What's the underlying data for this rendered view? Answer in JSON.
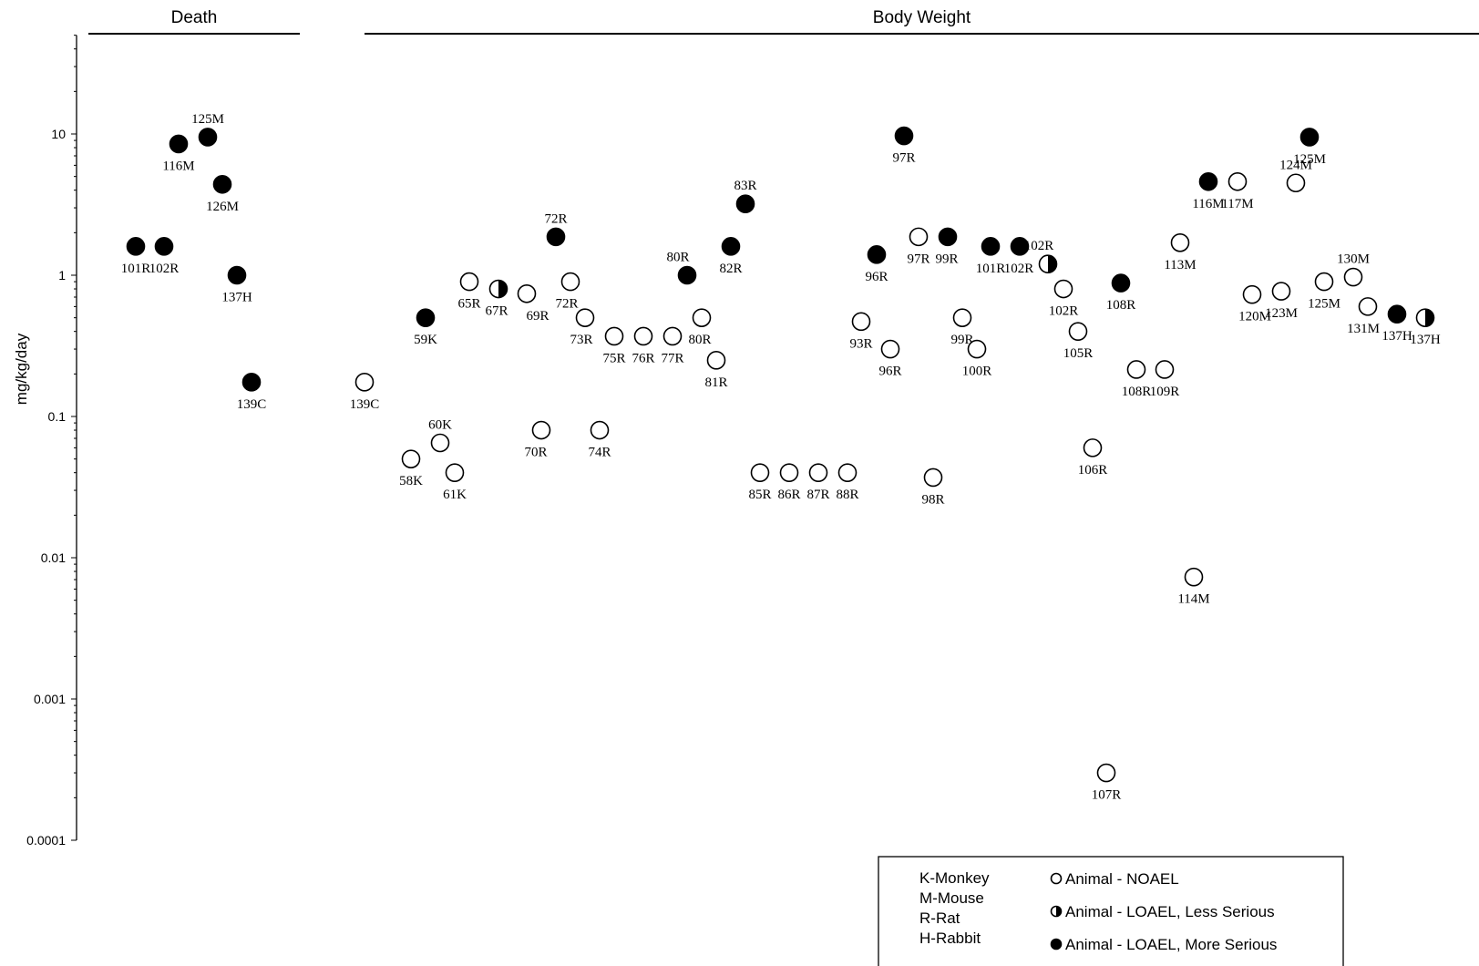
{
  "chart_data": {
    "type": "scatter",
    "ylabel": "mg/kg/day",
    "yscale": "log",
    "ylim": [
      0.0001,
      50
    ],
    "yticks": [
      "10",
      "1",
      "0.1",
      "0.01",
      "0.001",
      "0.0001"
    ],
    "panels": [
      {
        "title": "Death"
      },
      {
        "title": "Body Weight"
      }
    ],
    "points": [
      {
        "panel": "Death",
        "label": "101R",
        "value": 1.6,
        "type": "more"
      },
      {
        "panel": "Death",
        "label": "102R",
        "value": 1.6,
        "type": "more"
      },
      {
        "panel": "Death",
        "label": "116M",
        "value": 8.5,
        "type": "more"
      },
      {
        "panel": "Death",
        "label": "125M",
        "value": 9.5,
        "type": "more"
      },
      {
        "panel": "Death",
        "label": "126M",
        "value": 4.4,
        "type": "more"
      },
      {
        "panel": "Death",
        "label": "137H",
        "value": 1.0,
        "type": "more"
      },
      {
        "panel": "Death",
        "label": "139C",
        "value": 0.175,
        "type": "more"
      },
      {
        "panel": "Body Weight",
        "label": "58K",
        "value": 0.05,
        "type": "noael"
      },
      {
        "panel": "Body Weight",
        "label": "59K",
        "value": 0.5,
        "type": "more"
      },
      {
        "panel": "Body Weight",
        "label": "60K",
        "value": 0.065,
        "type": "noael"
      },
      {
        "panel": "Body Weight",
        "label": "61K",
        "value": 0.04,
        "type": "noael"
      },
      {
        "panel": "Body Weight",
        "label": "65R",
        "value": 0.9,
        "type": "noael"
      },
      {
        "panel": "Body Weight",
        "label": "67R",
        "value": 0.8,
        "type": "less"
      },
      {
        "panel": "Body Weight",
        "label": "69R",
        "value": 0.74,
        "type": "noael"
      },
      {
        "panel": "Body Weight",
        "label": "70R",
        "value": 0.08,
        "type": "noael"
      },
      {
        "panel": "Body Weight",
        "label": "72R",
        "value": 1.87,
        "type": "more"
      },
      {
        "panel": "Body Weight",
        "label": "72R",
        "value": 0.9,
        "type": "noael"
      },
      {
        "panel": "Body Weight",
        "label": "73R",
        "value": 0.5,
        "type": "noael"
      },
      {
        "panel": "Body Weight",
        "label": "74R",
        "value": 0.08,
        "type": "noael"
      },
      {
        "panel": "Body Weight",
        "label": "75R",
        "value": 0.37,
        "type": "noael"
      },
      {
        "panel": "Body Weight",
        "label": "76R",
        "value": 0.37,
        "type": "noael"
      },
      {
        "panel": "Body Weight",
        "label": "77R",
        "value": 0.37,
        "type": "noael"
      },
      {
        "panel": "Body Weight",
        "label": "80R",
        "value": 1.0,
        "type": "more"
      },
      {
        "panel": "Body Weight",
        "label": "80R",
        "value": 0.5,
        "type": "noael"
      },
      {
        "panel": "Body Weight",
        "label": "81R",
        "value": 0.25,
        "type": "noael"
      },
      {
        "panel": "Body Weight",
        "label": "82R",
        "value": 1.6,
        "type": "more"
      },
      {
        "panel": "Body Weight",
        "label": "83R",
        "value": 3.2,
        "type": "more"
      },
      {
        "panel": "Body Weight",
        "label": "85R",
        "value": 0.04,
        "type": "noael"
      },
      {
        "panel": "Body Weight",
        "label": "86R",
        "value": 0.04,
        "type": "noael"
      },
      {
        "panel": "Body Weight",
        "label": "87R",
        "value": 0.04,
        "type": "noael"
      },
      {
        "panel": "Body Weight",
        "label": "88R",
        "value": 0.04,
        "type": "noael"
      },
      {
        "panel": "Body Weight",
        "label": "93R",
        "value": 0.47,
        "type": "noael"
      },
      {
        "panel": "Body Weight",
        "label": "96R",
        "value": 1.4,
        "type": "more"
      },
      {
        "panel": "Body Weight",
        "label": "96R",
        "value": 0.3,
        "type": "noael"
      },
      {
        "panel": "Body Weight",
        "label": "97R",
        "value": 9.7,
        "type": "more"
      },
      {
        "panel": "Body Weight",
        "label": "97R",
        "value": 1.87,
        "type": "noael"
      },
      {
        "panel": "Body Weight",
        "label": "98R",
        "value": 0.037,
        "type": "noael"
      },
      {
        "panel": "Body Weight",
        "label": "99R",
        "value": 1.87,
        "type": "more"
      },
      {
        "panel": "Body Weight",
        "label": "99R",
        "value": 0.5,
        "type": "noael"
      },
      {
        "panel": "Body Weight",
        "label": "100R",
        "value": 0.3,
        "type": "noael"
      },
      {
        "panel": "Body Weight",
        "label": "101R",
        "value": 1.6,
        "type": "more"
      },
      {
        "panel": "Body Weight",
        "label": "102R",
        "value": 1.6,
        "type": "more"
      },
      {
        "panel": "Body Weight",
        "label": "102R",
        "value": 1.2,
        "type": "less"
      },
      {
        "panel": "Body Weight",
        "label": "102R",
        "value": 0.8,
        "type": "noael"
      },
      {
        "panel": "Body Weight",
        "label": "105R",
        "value": 0.4,
        "type": "noael"
      },
      {
        "panel": "Body Weight",
        "label": "106R",
        "value": 0.06,
        "type": "noael"
      },
      {
        "panel": "Body Weight",
        "label": "107R",
        "value": 0.0003,
        "type": "noael"
      },
      {
        "panel": "Body Weight",
        "label": "108R",
        "value": 0.88,
        "type": "more"
      },
      {
        "panel": "Body Weight",
        "label": "108R",
        "value": 0.215,
        "type": "noael"
      },
      {
        "panel": "Body Weight",
        "label": "109R",
        "value": 0.215,
        "type": "noael"
      },
      {
        "panel": "Body Weight",
        "label": "113M",
        "value": 1.7,
        "type": "noael"
      },
      {
        "panel": "Body Weight",
        "label": "114M",
        "value": 0.0073,
        "type": "noael"
      },
      {
        "panel": "Body Weight",
        "label": "116M",
        "value": 4.6,
        "type": "more"
      },
      {
        "panel": "Body Weight",
        "label": "117M",
        "value": 4.6,
        "type": "noael"
      },
      {
        "panel": "Body Weight",
        "label": "120M",
        "value": 0.73,
        "type": "noael"
      },
      {
        "panel": "Body Weight",
        "label": "123M",
        "value": 0.77,
        "type": "noael"
      },
      {
        "panel": "Body Weight",
        "label": "124M",
        "value": 4.5,
        "type": "noael"
      },
      {
        "panel": "Body Weight",
        "label": "125M",
        "value": 9.5,
        "type": "more"
      },
      {
        "panel": "Body Weight",
        "label": "125M",
        "value": 0.9,
        "type": "noael"
      },
      {
        "panel": "Body Weight",
        "label": "130M",
        "value": 0.97,
        "type": "noael"
      },
      {
        "panel": "Body Weight",
        "label": "131M",
        "value": 0.6,
        "type": "noael"
      },
      {
        "panel": "Body Weight",
        "label": "137H",
        "value": 0.53,
        "type": "more"
      },
      {
        "panel": "Body Weight",
        "label": "137H",
        "value": 0.5,
        "type": "less"
      },
      {
        "panel": "Body Weight",
        "label": "139C",
        "value": 0.175,
        "type": "noael"
      }
    ],
    "legend": {
      "position": "bottom-right",
      "species": [
        "K-Monkey",
        "M-Mouse",
        "R-Rat",
        "H-Rabbit"
      ],
      "markers": [
        {
          "type": "noael",
          "label": "Animal - NOAEL"
        },
        {
          "type": "less",
          "label": "Animal - LOAEL, Less Serious"
        },
        {
          "type": "more",
          "label": "Animal - LOAEL, More Serious"
        }
      ]
    }
  }
}
